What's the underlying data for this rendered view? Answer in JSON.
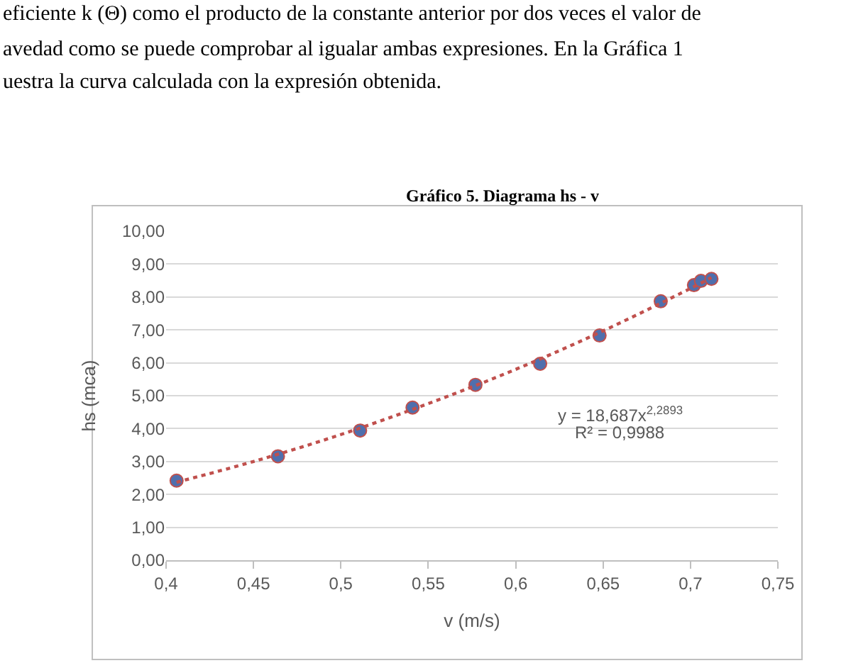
{
  "chart_data": {
    "type": "scatter",
    "title": "Gráfico 5. Diagrama hs - v",
    "xlabel": "v (m/s)",
    "ylabel": "hs (mca)",
    "annotations": [
      "eficiente k (Θ) como el producto de la constante anterior por dos veces el valor de",
      "avedad como se puede comprobar al igualar ambas expresiones. En la Gráfica 1",
      "uestra la curva calculada con la expresión obtenida.",
      "y = 18,687x$^{2,2893}$",
      "R² = 0,9988"
    ],
    "series": [
      {
        "color": "#4f6fad",
        "marker": "circle",
        "x": [
          0.406,
          0.464,
          0.511,
          0.541,
          0.577,
          0.614,
          0.648,
          0.683,
          0.702,
          0.706,
          0.712
        ],
        "values": [
          2.42,
          3.16,
          3.94,
          4.64,
          5.33,
          5.97,
          6.83,
          7.87,
          8.36,
          8.49,
          8.55
        ]
      },
      {
        "type": "line",
        "color": "#c0504d",
        "line_style": "dotted",
        "marker": "none",
        "x": [
          0.406,
          0.45,
          0.5,
          0.55,
          0.6,
          0.65,
          0.7,
          0.712
        ],
        "values": [
          2.37,
          3.0,
          3.82,
          4.76,
          5.8,
          6.97,
          8.26,
          8.59
        ]
      }
    ],
    "xlim": [
      0.4,
      0.75
    ],
    "xticks": [
      {
        "value": 0.4,
        "label": "0,4"
      },
      {
        "value": 0.45,
        "label": "0,45"
      },
      {
        "value": 0.5,
        "label": "0,5"
      },
      {
        "value": 0.55,
        "label": "0,55"
      },
      {
        "value": 0.6,
        "label": "0,6"
      },
      {
        "value": 0.65,
        "label": "0,65"
      },
      {
        "value": 0.7,
        "label": "0,7"
      },
      {
        "value": 0.75,
        "label": "0,75"
      }
    ],
    "ylim": [
      0,
      10
    ],
    "yticks": [
      {
        "value": 0,
        "label": "0,00"
      },
      {
        "value": 1,
        "label": "1,00"
      },
      {
        "value": 2,
        "label": "2,00"
      },
      {
        "value": 3,
        "label": "3,00"
      },
      {
        "value": 4,
        "label": "4,00"
      },
      {
        "value": 5,
        "label": "5,00"
      },
      {
        "value": 6,
        "label": "6,00"
      },
      {
        "value": 7,
        "label": "7,00"
      },
      {
        "value": 8,
        "label": "8,00"
      },
      {
        "value": 9,
        "label": "9,00"
      },
      {
        "value": 10,
        "label": "10,00"
      }
    ],
    "grid": "y"
  }
}
